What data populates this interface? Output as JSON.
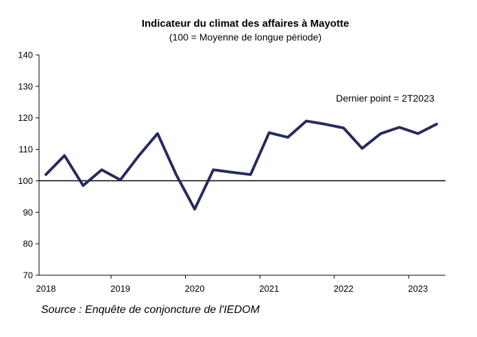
{
  "chart_data": {
    "type": "line",
    "title": "Indicateur du climat des affaires à Mayotte",
    "subtitle": "(100 = Moyenne de longue période)",
    "annotation": "Dernier point = 2T2023",
    "source": "Source : Enquête de conjoncture de l'IEDOM",
    "x_labels": [
      "2018",
      "2019",
      "2020",
      "2021",
      "2022",
      "2023"
    ],
    "ylim": [
      70,
      140
    ],
    "yticks": [
      70,
      80,
      90,
      100,
      110,
      120,
      130,
      140
    ],
    "reference_line": 100,
    "grid": false,
    "series": [
      {
        "color": "#262b5e",
        "x": [
          "2018-T1",
          "2018-T2",
          "2018-T3",
          "2018-T4",
          "2019-T1",
          "2019-T2",
          "2019-T3",
          "2019-T4",
          "2020-T1",
          "2020-T2",
          "2020-T3",
          "2020-T4",
          "2021-T1",
          "2021-T2",
          "2021-T3",
          "2021-T4",
          "2022-T1",
          "2022-T2",
          "2022-T3",
          "2022-T4",
          "2023-T1",
          "2023-T2"
        ],
        "values": [
          102,
          108,
          98.5,
          103.5,
          100.3,
          108,
          115,
          102,
          91,
          103.5,
          102.7,
          102,
          115.3,
          113.8,
          119,
          118,
          116.8,
          110.3,
          115,
          117,
          115,
          118
        ]
      }
    ]
  }
}
